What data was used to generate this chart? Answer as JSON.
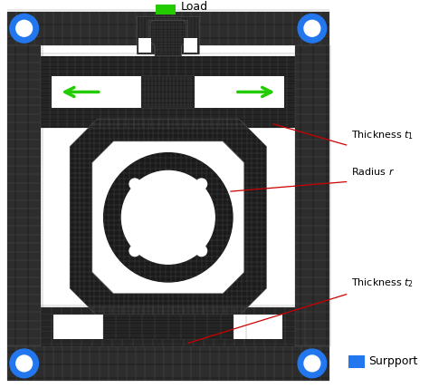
{
  "fig_width": 4.74,
  "fig_height": 4.28,
  "dpi": 100,
  "bg_color": "#ffffff",
  "mesh_dark": "#1a1a1a",
  "mesh_mid": "#3a3a3a",
  "mesh_line": "#606060",
  "white_color": "#ffffff",
  "blue_color": "#2277ee",
  "green_color": "#22cc00",
  "annotation_color": "#cc0000",
  "labels": {
    "load": "Load",
    "thickness1": "Thickness $t_1$",
    "radius": "Radius $r$",
    "thickness2": "Thickness $t_2$",
    "support": "Surpport"
  }
}
